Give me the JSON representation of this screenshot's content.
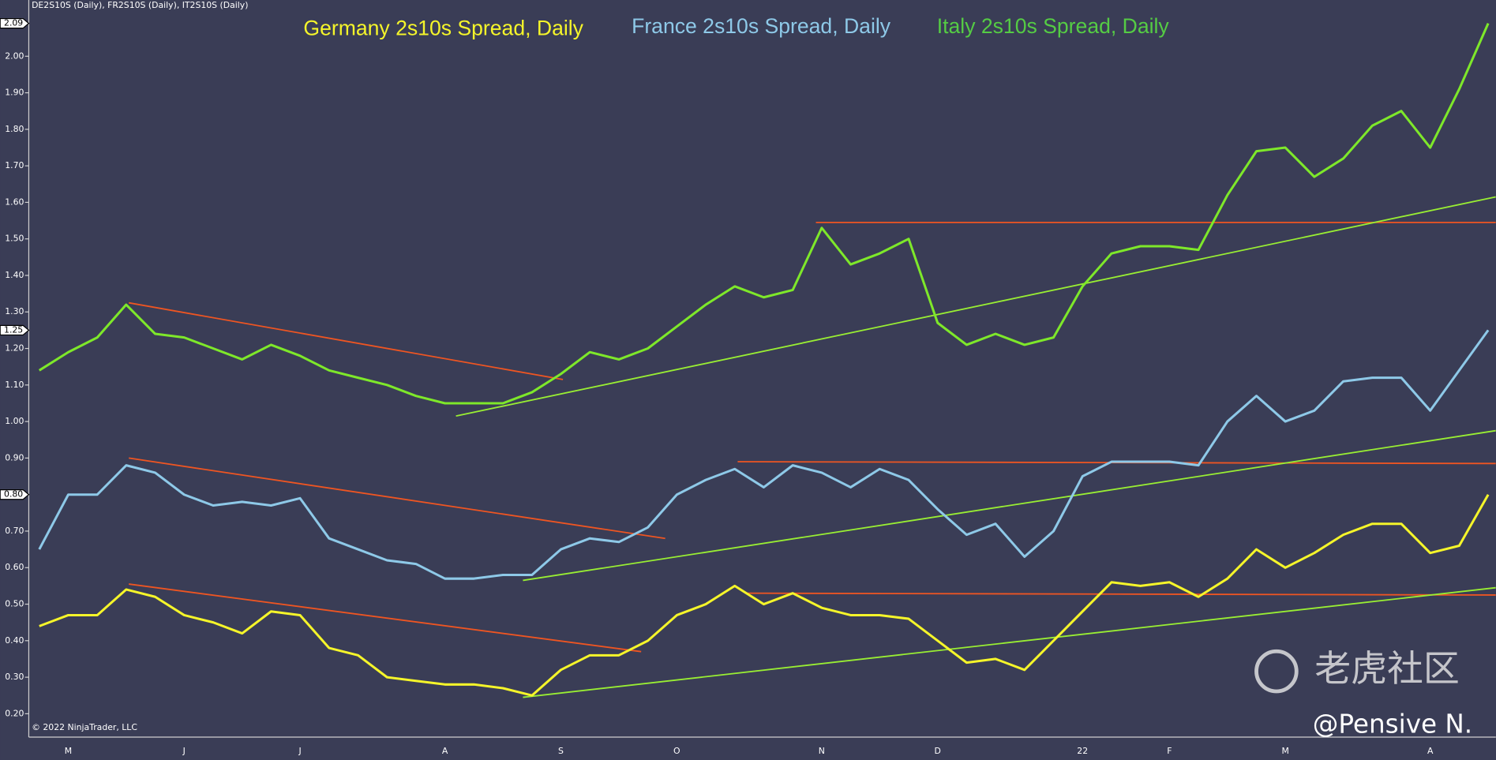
{
  "chart_data": {
    "type": "line",
    "header": "DE2S10S (Daily), FR2S10S (Daily), IT2S10S (Daily)",
    "copyright": "© 2022 NinjaTrader, LLC",
    "watermark": "老虎社区",
    "author": "@Pensive N.",
    "categories": [
      null,
      "M",
      null,
      null,
      null,
      "J",
      null,
      null,
      null,
      "J",
      null,
      null,
      null,
      null,
      "A",
      null,
      null,
      null,
      "S",
      null,
      null,
      null,
      "O",
      null,
      null,
      null,
      null,
      "N",
      null,
      null,
      null,
      "D",
      null,
      null,
      null,
      null,
      "22",
      null,
      null,
      "F",
      null,
      null,
      null,
      "M",
      null,
      null,
      null,
      null,
      "A",
      null,
      null
    ],
    "series": [
      {
        "name": "Germany 2s10s Spread, Daily",
        "color": "#f5f52a",
        "last_label": "0.80",
        "values": [
          0.44,
          0.47,
          0.47,
          0.54,
          0.52,
          0.47,
          0.45,
          0.42,
          0.48,
          0.47,
          0.38,
          0.36,
          0.3,
          0.29,
          0.28,
          0.28,
          0.27,
          0.25,
          0.32,
          0.36,
          0.36,
          0.4,
          0.47,
          0.5,
          0.55,
          0.5,
          0.53,
          0.49,
          0.47,
          0.47,
          0.46,
          0.4,
          0.34,
          0.35,
          0.32,
          0.4,
          0.48,
          0.56,
          0.55,
          0.56,
          0.52,
          0.57,
          0.65,
          0.6,
          0.64,
          0.69,
          0.72,
          0.72,
          0.64,
          0.66,
          0.8
        ]
      },
      {
        "name": "France 2s10s Spread, Daily",
        "color": "#8ec9e8",
        "last_label": "1.25",
        "values": [
          0.65,
          0.8,
          0.8,
          0.88,
          0.86,
          0.8,
          0.77,
          0.78,
          0.77,
          0.79,
          0.68,
          0.65,
          0.62,
          0.61,
          0.57,
          0.57,
          0.58,
          0.58,
          0.65,
          0.68,
          0.67,
          0.71,
          0.8,
          0.84,
          0.87,
          0.82,
          0.88,
          0.86,
          0.82,
          0.87,
          0.84,
          0.76,
          0.69,
          0.72,
          0.63,
          0.7,
          0.85,
          0.89,
          0.89,
          0.89,
          0.88,
          1.0,
          1.07,
          1.0,
          1.03,
          1.11,
          1.12,
          1.12,
          1.03,
          1.14,
          1.25
        ]
      },
      {
        "name": "Italy 2s10s Spread, Daily",
        "color": "#7ee82a",
        "title_color": "#55cc44",
        "last_label": "2.09",
        "values": [
          1.14,
          1.19,
          1.23,
          1.32,
          1.24,
          1.23,
          1.2,
          1.17,
          1.21,
          1.18,
          1.14,
          1.12,
          1.1,
          1.07,
          1.05,
          1.05,
          1.05,
          1.08,
          1.13,
          1.19,
          1.17,
          1.2,
          1.26,
          1.32,
          1.37,
          1.34,
          1.36,
          1.53,
          1.43,
          1.46,
          1.5,
          1.27,
          1.21,
          1.24,
          1.21,
          1.23,
          1.37,
          1.46,
          1.48,
          1.48,
          1.47,
          1.62,
          1.74,
          1.75,
          1.67,
          1.72,
          1.81,
          1.85,
          1.75,
          1.91,
          2.09
        ]
      }
    ],
    "trendlines": [
      {
        "color": "#ee5522",
        "x": [
          3.09,
          18.07
        ],
        "y": [
          1.325,
          1.115
        ]
      },
      {
        "color": "#ee5522",
        "x": [
          3.09,
          21.6
        ],
        "y": [
          0.9,
          0.68
        ]
      },
      {
        "color": "#ee5522",
        "x": [
          3.09,
          20.77
        ],
        "y": [
          0.555,
          0.37
        ]
      },
      {
        "color": "#ee5522",
        "x": [
          26.8,
          50.26
        ],
        "y": [
          1.545,
          1.545
        ]
      },
      {
        "color": "#ee5522",
        "x": [
          24.1,
          50.26
        ],
        "y": [
          0.89,
          0.885
        ]
      },
      {
        "color": "#ee5522",
        "x": [
          24.4,
          50.26
        ],
        "y": [
          0.53,
          0.525
        ]
      },
      {
        "color": "#99ee33",
        "x": [
          14.38,
          50.26
        ],
        "y": [
          1.015,
          1.615
        ]
      },
      {
        "color": "#99ee33",
        "x": [
          16.69,
          50.26
        ],
        "y": [
          0.565,
          0.975
        ]
      },
      {
        "color": "#99ee33",
        "x": [
          16.69,
          50.26
        ],
        "y": [
          0.245,
          0.545
        ]
      }
    ],
    "ylim": [
      0.136,
      2.154
    ],
    "yticks": [
      {
        "value": 0.2,
        "label": "0.20"
      },
      {
        "value": 0.3,
        "label": "0.30"
      },
      {
        "value": 0.4,
        "label": "0.40"
      },
      {
        "value": 0.5,
        "label": "0.50"
      },
      {
        "value": 0.6,
        "label": "0.60"
      },
      {
        "value": 0.7,
        "label": "0.70"
      },
      {
        "value": 0.8,
        "label": "0.80"
      },
      {
        "value": 0.9,
        "label": "0.90"
      },
      {
        "value": 1,
        "label": "1.00"
      },
      {
        "value": 1.1,
        "label": "1.10"
      },
      {
        "value": 1.2,
        "label": "1.20"
      },
      {
        "value": 1.3,
        "label": "1.30"
      },
      {
        "value": 1.4,
        "label": "1.40"
      },
      {
        "value": 1.5,
        "label": "1.50"
      },
      {
        "value": 1.6,
        "label": "1.60"
      },
      {
        "value": 1.7,
        "label": "1.70"
      },
      {
        "value": 1.8,
        "label": "1.80"
      },
      {
        "value": 1.9,
        "label": "1.90"
      },
      {
        "value": 2,
        "label": "2.00"
      }
    ],
    "grid": false
  }
}
